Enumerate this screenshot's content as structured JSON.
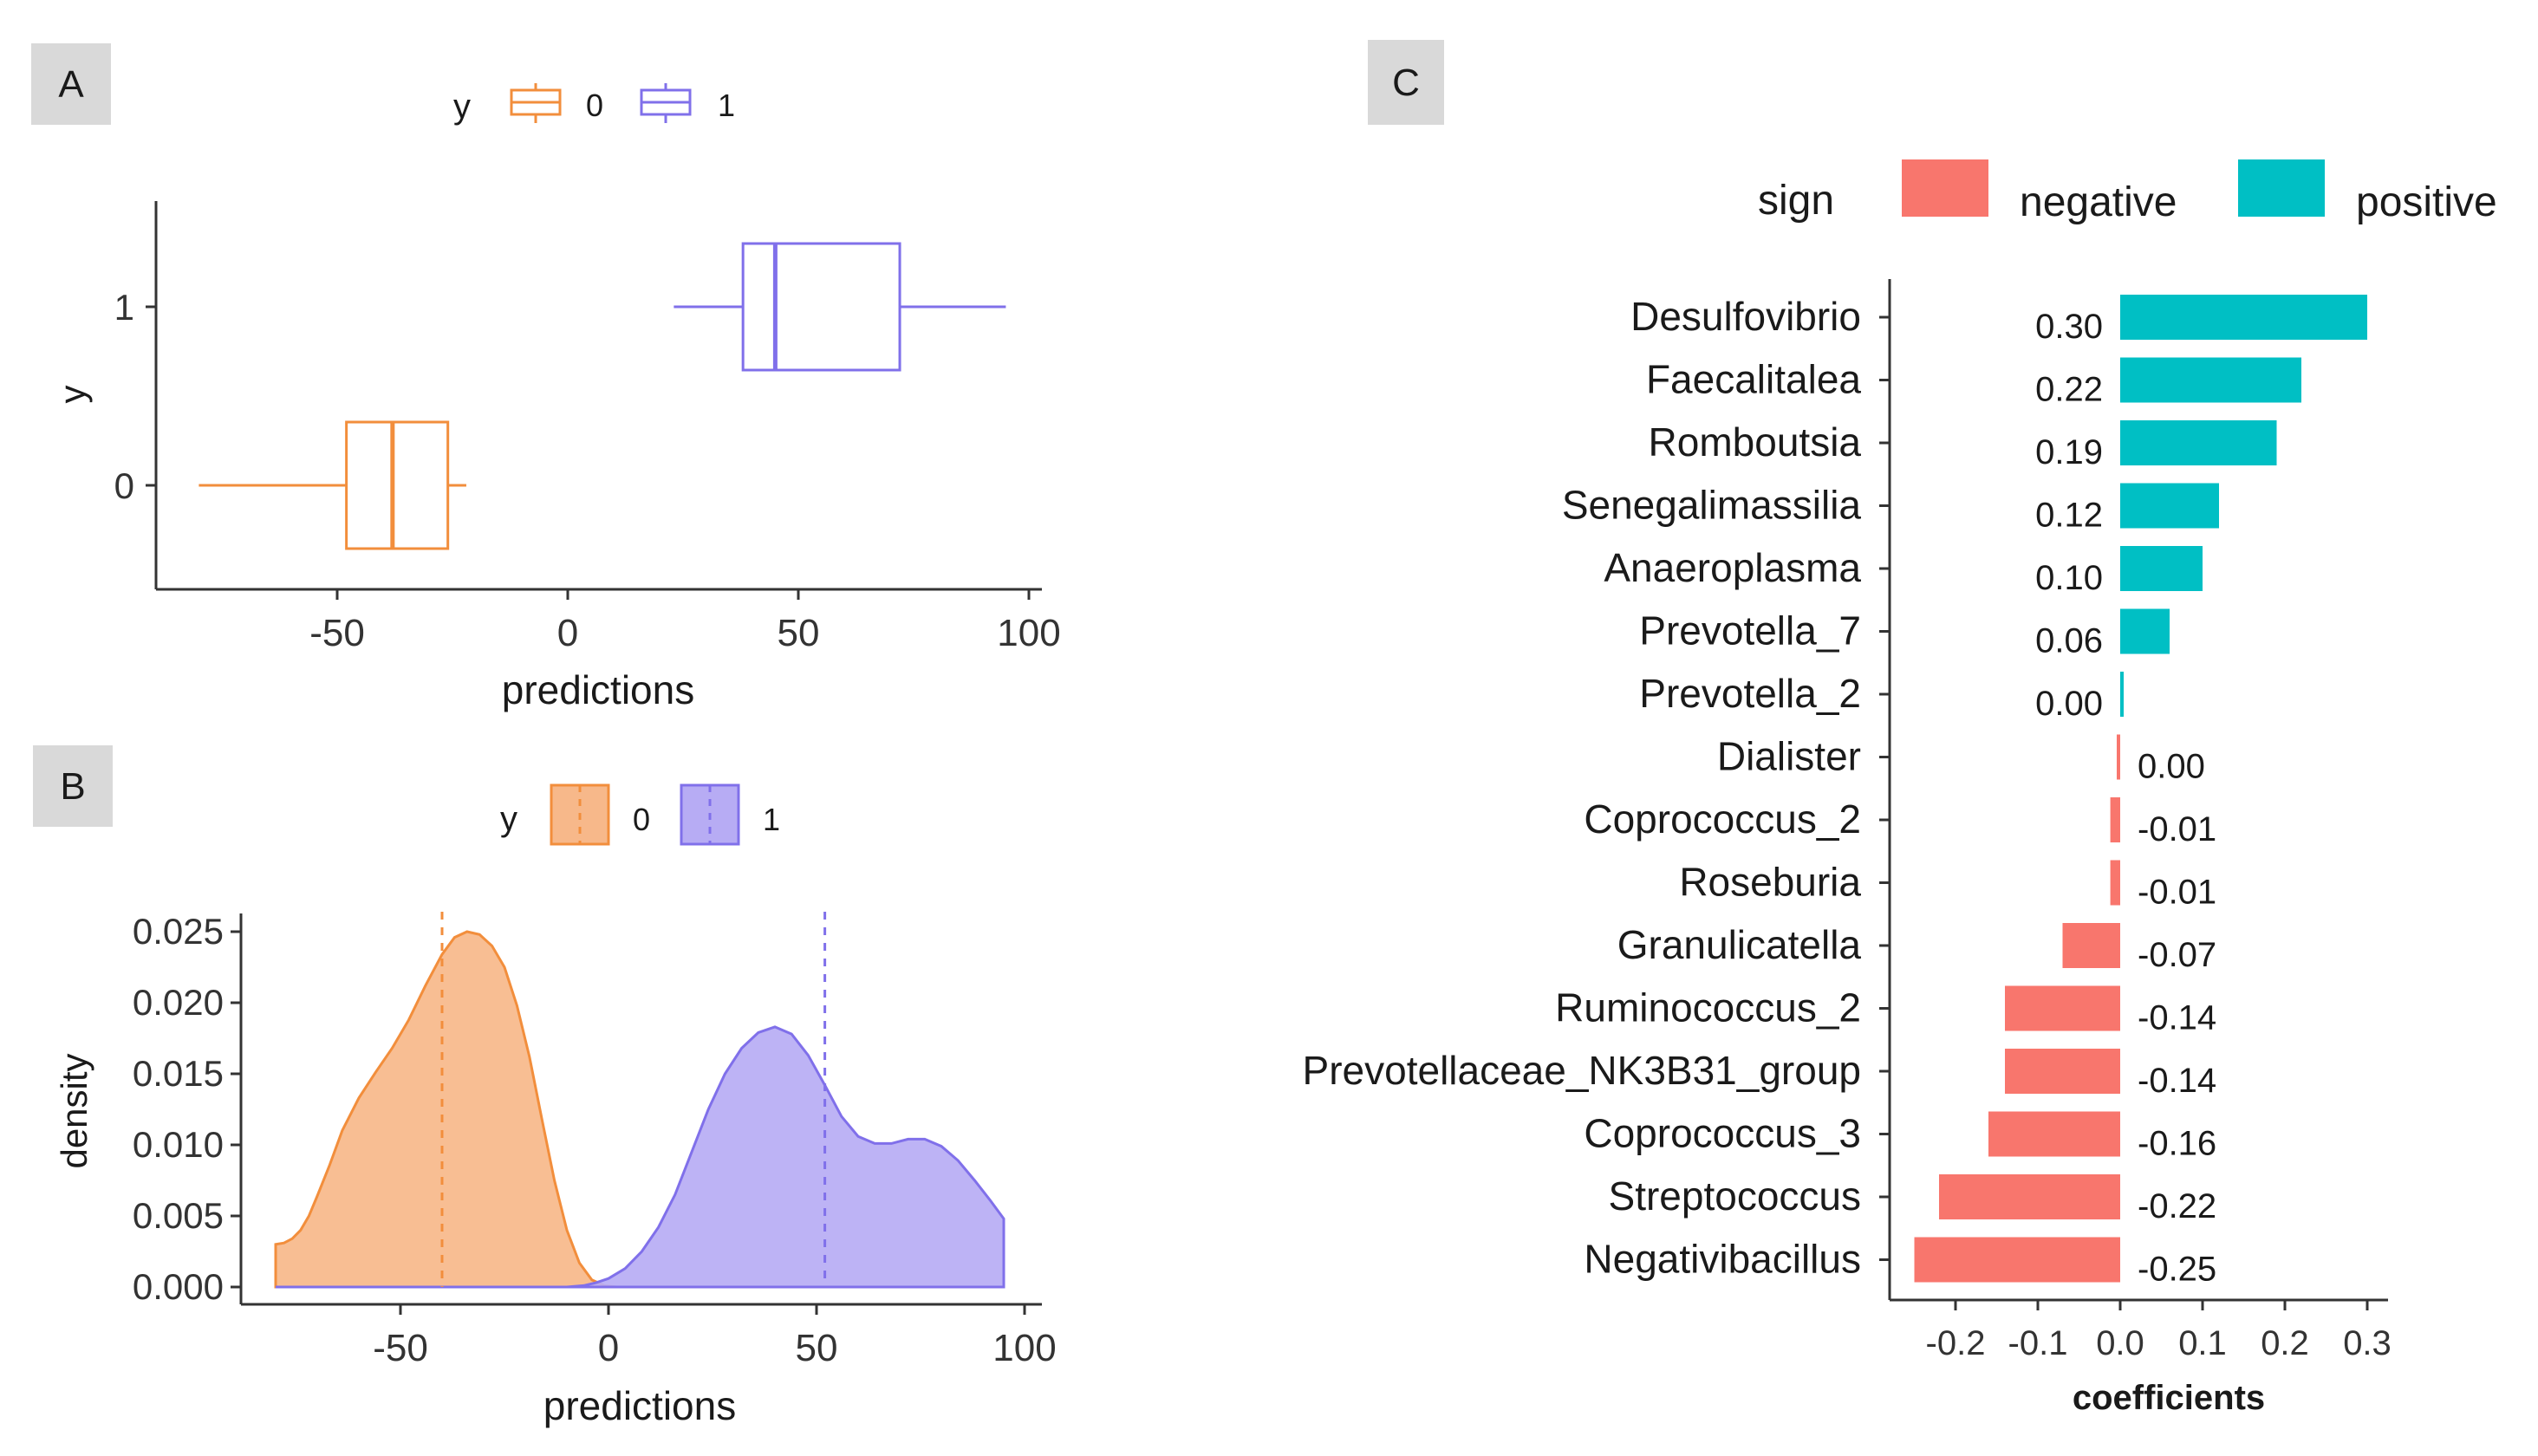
{
  "colors": {
    "group0": "#f28e3c",
    "group1": "#8070ea",
    "group0_fill": "#f7b88a",
    "group1_fill": "#b7acf4",
    "negative": "#f8766d",
    "positive": "#00bfc4",
    "panel_label_bg": "#d9d9d9",
    "axis": "#333333",
    "text": "#1a1a1a"
  },
  "chart_data": [
    {
      "panel": "A",
      "type": "boxplot",
      "orientation": "horizontal",
      "legend": {
        "title": "y",
        "entries": [
          "0",
          "1"
        ],
        "position": "top"
      },
      "xlabel": "predictions",
      "ylabel": "y",
      "xlim": [
        -90,
        100
      ],
      "xticks": [
        -50,
        0,
        50,
        100
      ],
      "categories": [
        "0",
        "1"
      ],
      "boxes": [
        {
          "group": "0",
          "min": -80,
          "q1": -48,
          "median": -38,
          "q3": -26,
          "max": -22
        },
        {
          "group": "1",
          "min": 23,
          "q1": 38,
          "median": 45,
          "q3": 72,
          "max": 95
        }
      ],
      "grid": false
    },
    {
      "panel": "B",
      "type": "area",
      "subtype": "density",
      "legend": {
        "title": "y",
        "entries": [
          "0",
          "1"
        ],
        "position": "top"
      },
      "xlabel": "predictions",
      "ylabel": "density",
      "xlim": [
        -90,
        100
      ],
      "ylim": [
        0,
        0.026
      ],
      "xticks": [
        -50,
        0,
        50,
        100
      ],
      "yticks": [
        "0.000",
        "0.005",
        "0.010",
        "0.015",
        "0.020",
        "0.025"
      ],
      "series": [
        {
          "name": "0",
          "mean_line": -40,
          "points": [
            [
              -80,
              0.003
            ],
            [
              -78,
              0.0031
            ],
            [
              -76,
              0.0034
            ],
            [
              -74,
              0.004
            ],
            [
              -72,
              0.005
            ],
            [
              -70,
              0.0064
            ],
            [
              -67,
              0.0086
            ],
            [
              -64,
              0.011
            ],
            [
              -60,
              0.0133
            ],
            [
              -56,
              0.0151
            ],
            [
              -52,
              0.0168
            ],
            [
              -48,
              0.0188
            ],
            [
              -44,
              0.0212
            ],
            [
              -40,
              0.0234
            ],
            [
              -37,
              0.0246
            ],
            [
              -34,
              0.025
            ],
            [
              -31,
              0.0248
            ],
            [
              -28,
              0.024
            ],
            [
              -25,
              0.0225
            ],
            [
              -22,
              0.0198
            ],
            [
              -19,
              0.0162
            ],
            [
              -16,
              0.0118
            ],
            [
              -13,
              0.0075
            ],
            [
              -10,
              0.004
            ],
            [
              -7,
              0.0017
            ],
            [
              -4,
              0.0005
            ],
            [
              -1,
              0.0001
            ],
            [
              2,
              0
            ],
            [
              95,
              0
            ]
          ]
        },
        {
          "name": "1",
          "mean_line": 52,
          "points": [
            [
              -80,
              0
            ],
            [
              -10,
              0
            ],
            [
              -6,
              0.0001
            ],
            [
              -3,
              0.0003
            ],
            [
              0,
              0.0006
            ],
            [
              4,
              0.0013
            ],
            [
              8,
              0.0025
            ],
            [
              12,
              0.0042
            ],
            [
              16,
              0.0065
            ],
            [
              20,
              0.0095
            ],
            [
              24,
              0.0125
            ],
            [
              28,
              0.015
            ],
            [
              32,
              0.0168
            ],
            [
              36,
              0.0179
            ],
            [
              40,
              0.0183
            ],
            [
              44,
              0.0178
            ],
            [
              48,
              0.0163
            ],
            [
              52,
              0.0142
            ],
            [
              56,
              0.012
            ],
            [
              60,
              0.0106
            ],
            [
              64,
              0.0101
            ],
            [
              68,
              0.0101
            ],
            [
              72,
              0.0104
            ],
            [
              76,
              0.0104
            ],
            [
              80,
              0.0099
            ],
            [
              84,
              0.0089
            ],
            [
              88,
              0.0075
            ],
            [
              92,
              0.006
            ],
            [
              95,
              0.0048
            ]
          ]
        }
      ],
      "grid": false
    },
    {
      "panel": "C",
      "type": "bar",
      "orientation": "horizontal",
      "legend": {
        "title": "sign",
        "entries": [
          "negative",
          "positive"
        ],
        "position": "top-right"
      },
      "xlabel": "coefficients",
      "xlim": [
        -0.26,
        0.34
      ],
      "xticks": [
        "-0.2",
        "-0.1",
        "0.0",
        "0.1",
        "0.2",
        "0.3"
      ],
      "bars": [
        {
          "category": "Desulfovibrio",
          "value": 0.3,
          "label": "0.30",
          "sign": "positive"
        },
        {
          "category": "Faecalitalea",
          "value": 0.22,
          "label": "0.22",
          "sign": "positive"
        },
        {
          "category": "Romboutsia",
          "value": 0.19,
          "label": "0.19",
          "sign": "positive"
        },
        {
          "category": "Senegalimassilia",
          "value": 0.12,
          "label": "0.12",
          "sign": "positive"
        },
        {
          "category": "Anaeroplasma",
          "value": 0.1,
          "label": "0.10",
          "sign": "positive"
        },
        {
          "category": "Prevotella_7",
          "value": 0.06,
          "label": "0.06",
          "sign": "positive"
        },
        {
          "category": "Prevotella_2",
          "value": 0.004,
          "label": "0.00",
          "sign": "positive"
        },
        {
          "category": "Dialister",
          "value": -0.003,
          "label": "0.00",
          "sign": "negative"
        },
        {
          "category": "Coprococcus_2",
          "value": -0.012,
          "label": "-0.01",
          "sign": "negative"
        },
        {
          "category": "Roseburia",
          "value": -0.012,
          "label": "-0.01",
          "sign": "negative"
        },
        {
          "category": "Granulicatella",
          "value": -0.07,
          "label": "-0.07",
          "sign": "negative"
        },
        {
          "category": "Ruminococcus_2",
          "value": -0.14,
          "label": "-0.14",
          "sign": "negative"
        },
        {
          "category": "Prevotellaceae_NK3B31_group",
          "value": -0.14,
          "label": "-0.14",
          "sign": "negative"
        },
        {
          "category": "Coprococcus_3",
          "value": -0.16,
          "label": "-0.16",
          "sign": "negative"
        },
        {
          "category": "Streptococcus",
          "value": -0.22,
          "label": "-0.22",
          "sign": "negative"
        },
        {
          "category": "Negativibacillus",
          "value": -0.25,
          "label": "-0.25",
          "sign": "negative"
        }
      ],
      "grid": false
    }
  ]
}
